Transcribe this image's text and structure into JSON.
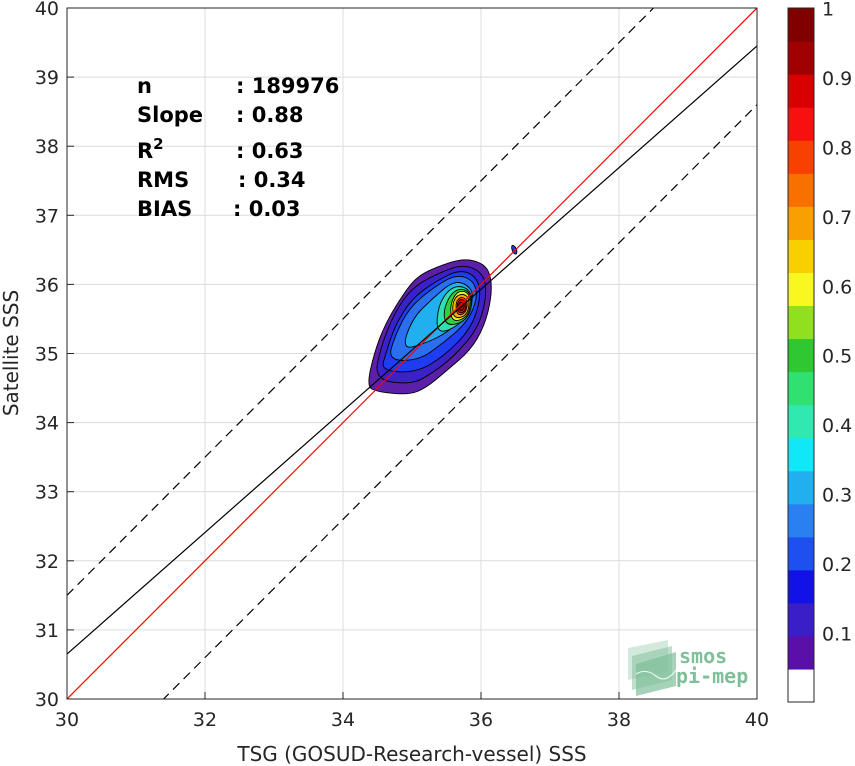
{
  "chart_data": {
    "type": "heatmap",
    "title": "",
    "xlabel": "TSG (GOSUD-Research-vessel) SSS",
    "ylabel": "Satellite SSS",
    "xlim": [
      30,
      40
    ],
    "ylim": [
      30,
      40
    ],
    "x_ticks": [
      "30",
      "32",
      "34",
      "36",
      "38",
      "40"
    ],
    "y_ticks": [
      "30",
      "31",
      "32",
      "33",
      "34",
      "35",
      "36",
      "37",
      "38",
      "39",
      "40"
    ],
    "grid": true,
    "stats": [
      {
        "name": "n",
        "value": ": 189976"
      },
      {
        "name": "Slope",
        "value": ": 0.88"
      },
      {
        "name": "R",
        "sup": "2",
        "value": ": 0.63"
      },
      {
        "name": "RMS",
        "value": ": 0.34"
      },
      {
        "name": "BIAS",
        "value": ": 0.03"
      }
    ],
    "lines": {
      "identity": {
        "color": "#ff0000",
        "x": [
          30,
          40
        ],
        "y": [
          30,
          40
        ]
      },
      "fit": {
        "color": "#000000",
        "x": [
          30,
          40
        ],
        "y": [
          30.65,
          39.45
        ]
      },
      "upper_bound": {
        "color": "#000000",
        "dash": true,
        "x": [
          30,
          40
        ],
        "y": [
          31.5,
          41.5
        ]
      },
      "lower_bound": {
        "color": "#000000",
        "dash": true,
        "x": [
          30,
          40
        ],
        "y": [
          28.6,
          38.6
        ]
      }
    },
    "density_center": {
      "x": 35.72,
      "y": 35.68
    },
    "contours": [
      {
        "level": 0.05,
        "color": "#5b1fa8",
        "points": [
          [
            34.35,
            34.55
          ],
          [
            34.45,
            34.45
          ],
          [
            34.95,
            34.4
          ],
          [
            35.2,
            34.5
          ],
          [
            35.5,
            34.75
          ],
          [
            35.85,
            35.05
          ],
          [
            36.05,
            35.4
          ],
          [
            36.15,
            35.8
          ],
          [
            36.15,
            36.1
          ],
          [
            36.05,
            36.3
          ],
          [
            35.75,
            36.38
          ],
          [
            35.35,
            36.25
          ],
          [
            35.05,
            36.1
          ],
          [
            34.8,
            35.75
          ],
          [
            34.6,
            35.4
          ],
          [
            34.45,
            35.0
          ]
        ]
      },
      {
        "level": 0.1,
        "color": "#3a22c8",
        "points": [
          [
            34.45,
            34.62
          ],
          [
            35.0,
            34.55
          ],
          [
            35.3,
            34.72
          ],
          [
            35.6,
            34.95
          ],
          [
            35.95,
            35.35
          ],
          [
            36.08,
            35.8
          ],
          [
            36.05,
            36.15
          ],
          [
            35.75,
            36.3
          ],
          [
            35.35,
            36.15
          ],
          [
            35.0,
            35.95
          ],
          [
            34.75,
            35.6
          ],
          [
            34.55,
            35.1
          ]
        ]
      },
      {
        "level": 0.15,
        "color": "#1e3cf0",
        "points": [
          [
            34.55,
            34.75
          ],
          [
            35.05,
            34.72
          ],
          [
            35.45,
            34.95
          ],
          [
            35.85,
            35.35
          ],
          [
            36.0,
            35.8
          ],
          [
            35.95,
            36.1
          ],
          [
            35.7,
            36.22
          ],
          [
            35.35,
            36.05
          ],
          [
            35.0,
            35.8
          ],
          [
            34.75,
            35.4
          ],
          [
            34.62,
            35.0
          ]
        ]
      },
      {
        "level": 0.2,
        "color": "#2a6ff0",
        "points": [
          [
            34.65,
            34.9
          ],
          [
            35.1,
            34.9
          ],
          [
            35.45,
            35.15
          ],
          [
            35.8,
            35.45
          ],
          [
            35.95,
            35.8
          ],
          [
            35.9,
            36.05
          ],
          [
            35.65,
            36.15
          ],
          [
            35.3,
            35.95
          ],
          [
            34.95,
            35.65
          ],
          [
            34.75,
            35.25
          ]
        ]
      },
      {
        "level": 0.3,
        "color": "#20b0f0",
        "points": [
          [
            34.85,
            35.05
          ],
          [
            35.2,
            35.15
          ],
          [
            35.5,
            35.3
          ],
          [
            35.8,
            35.55
          ],
          [
            35.9,
            35.85
          ],
          [
            35.8,
            36.0
          ],
          [
            35.6,
            36.05
          ],
          [
            35.3,
            35.8
          ],
          [
            35.0,
            35.5
          ]
        ]
      },
      {
        "level": 0.4,
        "color": "#30e0b0",
        "points": [
          [
            35.35,
            35.3
          ],
          [
            35.6,
            35.35
          ],
          [
            35.85,
            35.6
          ],
          [
            35.88,
            35.85
          ],
          [
            35.75,
            35.98
          ],
          [
            35.55,
            35.95
          ],
          [
            35.38,
            35.7
          ]
        ]
      },
      {
        "level": 0.5,
        "color": "#30d040",
        "points": [
          [
            35.5,
            35.4
          ],
          [
            35.75,
            35.45
          ],
          [
            35.87,
            35.65
          ],
          [
            35.85,
            35.88
          ],
          [
            35.7,
            35.95
          ],
          [
            35.55,
            35.85
          ],
          [
            35.45,
            35.6
          ]
        ]
      },
      {
        "level": 0.6,
        "color": "#f0f020",
        "points": [
          [
            35.58,
            35.45
          ],
          [
            35.8,
            35.52
          ],
          [
            35.86,
            35.75
          ],
          [
            35.8,
            35.9
          ],
          [
            35.65,
            35.9
          ],
          [
            35.55,
            35.7
          ]
        ]
      },
      {
        "level": 0.7,
        "color": "#ffb000",
        "points": [
          [
            35.62,
            35.5
          ],
          [
            35.8,
            35.55
          ],
          [
            35.84,
            35.78
          ],
          [
            35.75,
            35.87
          ],
          [
            35.62,
            35.82
          ],
          [
            35.58,
            35.65
          ]
        ]
      },
      {
        "level": 0.8,
        "color": "#ff5a00",
        "points": [
          [
            35.65,
            35.55
          ],
          [
            35.78,
            35.58
          ],
          [
            35.81,
            35.76
          ],
          [
            35.72,
            35.83
          ],
          [
            35.63,
            35.75
          ]
        ]
      },
      {
        "level": 0.9,
        "color": "#e80000",
        "points": [
          [
            35.67,
            35.58
          ],
          [
            35.77,
            35.6
          ],
          [
            35.79,
            35.74
          ],
          [
            35.71,
            35.8
          ],
          [
            35.65,
            35.72
          ]
        ]
      },
      {
        "level": 1.0,
        "color": "#a00000",
        "points": [
          [
            35.69,
            35.62
          ],
          [
            35.75,
            35.63
          ],
          [
            35.76,
            35.72
          ],
          [
            35.7,
            35.75
          ],
          [
            35.67,
            35.7
          ]
        ]
      }
    ],
    "satellite_blob": {
      "color": "#2a3ad8",
      "points": [
        [
          36.45,
          36.58
        ],
        [
          36.52,
          36.52
        ],
        [
          36.52,
          36.43
        ],
        [
          36.47,
          36.45
        ],
        [
          36.44,
          36.52
        ]
      ]
    },
    "colorbar": {
      "ticks": [
        "0.1",
        "0.2",
        "0.3",
        "0.4",
        "0.5",
        "0.6",
        "0.7",
        "0.8",
        "0.9",
        "1"
      ],
      "tick_values": [
        0.1,
        0.2,
        0.3,
        0.4,
        0.5,
        0.6,
        0.7,
        0.8,
        0.9,
        1.0
      ],
      "range": [
        0,
        1
      ],
      "colors": [
        "#ffffff",
        "#5a10a8",
        "#3a1ec8",
        "#1212e8",
        "#1e50f0",
        "#2a80f0",
        "#20b0f0",
        "#10e8f8",
        "#30e8b0",
        "#30e070",
        "#30c830",
        "#90e020",
        "#f8f820",
        "#f8d000",
        "#f8a000",
        "#f87000",
        "#f84000",
        "#f81010",
        "#d80000",
        "#a00000",
        "#800000"
      ]
    }
  },
  "logo": {
    "line1": "smos",
    "line2": "pi-mep",
    "color": "#7fbf9a"
  }
}
